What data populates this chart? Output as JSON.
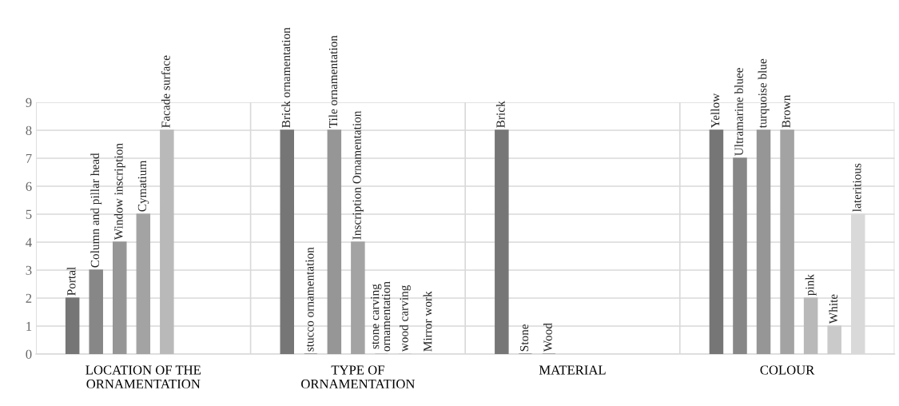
{
  "chart_data": {
    "type": "bar",
    "categories": [
      "LOCATION OF THE\nORNAMENTATION",
      "TYPE OF\nORNAMENTATION",
      "MATERIAL",
      "COLOUR"
    ],
    "series": [
      {
        "color": "#767676",
        "values": [
          2,
          8,
          8,
          8
        ],
        "value_labels": [
          "Portal",
          "Brick ornamentation",
          "Brick",
          "Yellow"
        ]
      },
      {
        "color": "#878787",
        "values": [
          3,
          0,
          0,
          7
        ],
        "value_labels": [
          "Column and pillar head",
          "stucco ornamentation",
          "Stone",
          "Ultramarine bluee"
        ]
      },
      {
        "color": "#969696",
        "values": [
          4,
          8,
          0,
          8
        ],
        "value_labels": [
          "Window inscription",
          "Tile ornamentation",
          "Wood",
          "turquoise blue"
        ]
      },
      {
        "color": "#a3a3a3",
        "values": [
          5,
          4,
          null,
          8
        ],
        "value_labels": [
          "Cymatium",
          "Inscription Ornamentation",
          null,
          "Brown"
        ]
      },
      {
        "color": "#b9b9b9",
        "values": [
          8,
          0,
          null,
          2
        ],
        "value_labels": [
          "Facade surface",
          "stone carving\nornamentation",
          null,
          "pink"
        ]
      },
      {
        "color": "#cacaca",
        "values": [
          null,
          0,
          null,
          1
        ],
        "value_labels": [
          null,
          "wood carving",
          null,
          "White"
        ]
      },
      {
        "color": "#d9d9d9",
        "values": [
          null,
          0,
          null,
          5
        ],
        "value_labels": [
          null,
          "Mirror work",
          null,
          "lateritious"
        ]
      }
    ],
    "ylim": [
      0,
      9
    ],
    "yticks": [
      0,
      1,
      2,
      3,
      4,
      5,
      6,
      7,
      8,
      9
    ],
    "grid": true
  }
}
